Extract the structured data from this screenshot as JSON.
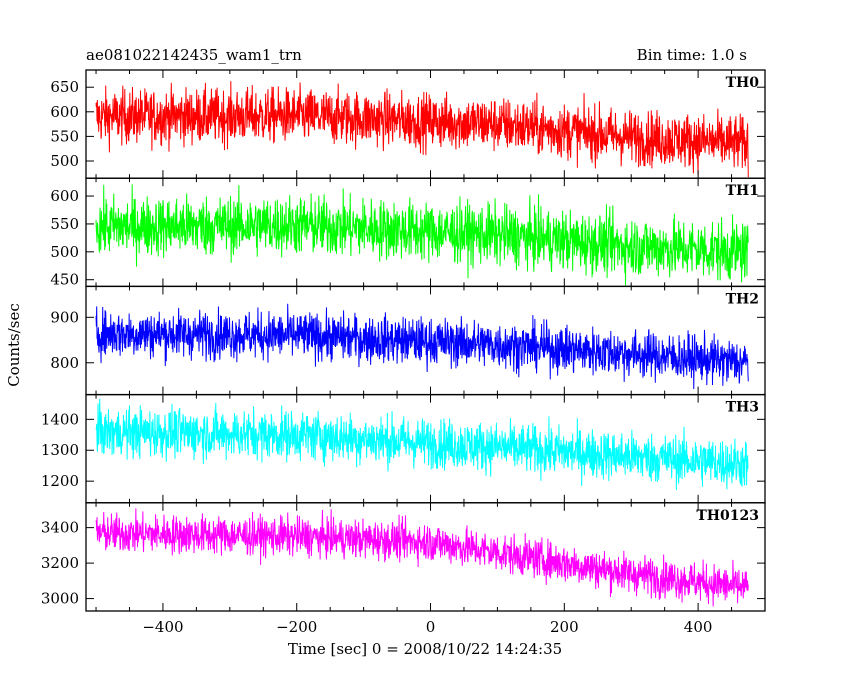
{
  "chart_data": {
    "type": "line",
    "title": "ae081022142435_wam1_trn",
    "subtitle": "Bin time: 1.0 s",
    "xlabel": "Time [sec] 0 = 2008/10/22 14:24:35",
    "ylabel": "Counts/sec",
    "xlim": [
      -515,
      500
    ],
    "x_ticks": [
      -400,
      -200,
      0,
      200,
      400
    ],
    "x_range": [
      -500,
      475
    ],
    "grid": false,
    "legend": "none",
    "panels": [
      {
        "name": "TH0",
        "color": "#ff0000",
        "ylim": [
          465,
          685
        ],
        "y_ticks": [
          500,
          550,
          600,
          650
        ],
        "trend": {
          "x": [
            -500,
            -200,
            100,
            300,
            475
          ],
          "y": [
            590,
            592,
            575,
            548,
            535
          ]
        },
        "noise_sd": 28
      },
      {
        "name": "TH1",
        "color": "#00ff00",
        "ylim": [
          438,
          632
        ],
        "y_ticks": [
          450,
          500,
          550,
          600
        ],
        "trend": {
          "x": [
            -500,
            -200,
            100,
            300,
            475
          ],
          "y": [
            545,
            548,
            530,
            510,
            500
          ]
        },
        "noise_sd": 27
      },
      {
        "name": "TH2",
        "color": "#0000ff",
        "ylim": [
          730,
          968
        ],
        "y_ticks": [
          800,
          900
        ],
        "trend": {
          "x": [
            -500,
            -200,
            100,
            300,
            475
          ],
          "y": [
            865,
            860,
            840,
            820,
            800
          ]
        },
        "noise_sd": 26
      },
      {
        "name": "TH3",
        "color": "#00ffff",
        "ylim": [
          1130,
          1480
        ],
        "y_ticks": [
          1200,
          1300,
          1400
        ],
        "trend": {
          "x": [
            -500,
            -200,
            100,
            300,
            475
          ],
          "y": [
            1360,
            1350,
            1310,
            1280,
            1255
          ]
        },
        "noise_sd": 40
      },
      {
        "name": "TH0123",
        "color": "#ff00ff",
        "ylim": [
          2930,
          3540
        ],
        "y_ticks": [
          3000,
          3200,
          3400
        ],
        "trend": {
          "x": [
            -500,
            -200,
            0,
            100,
            300,
            475
          ],
          "y": [
            3370,
            3350,
            3320,
            3260,
            3140,
            3060
          ]
        },
        "noise_sd": 55
      }
    ]
  }
}
